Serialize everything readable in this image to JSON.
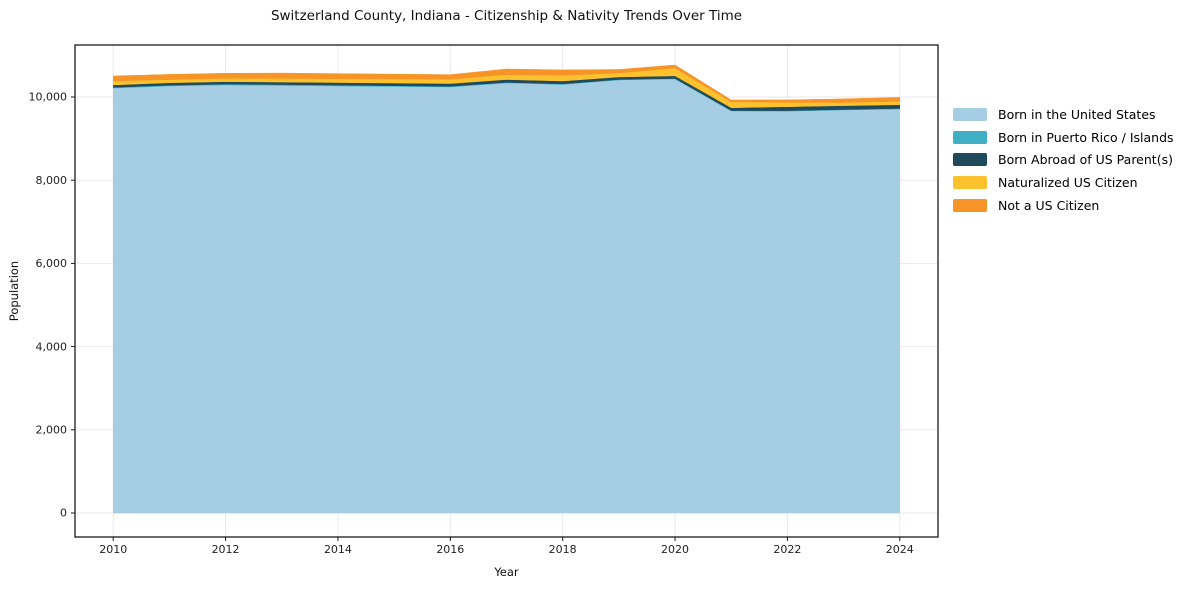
{
  "title": "Switzerland County, Indiana - Citizenship & Nativity Trends Over Time",
  "colors": {
    "background": "#ffffff",
    "frame": "#1a1a1a",
    "grid": "#e9e9e9",
    "tick_text": "#1f1f1f"
  },
  "chart_data": {
    "type": "area",
    "stacked": true,
    "title": "Switzerland County, Indiana - Citizenship & Nativity Trends Over Time",
    "xlabel": "Year",
    "ylabel": "Population",
    "x": [
      2010,
      2011,
      2012,
      2013,
      2014,
      2015,
      2016,
      2017,
      2018,
      2019,
      2020,
      2021,
      2022,
      2023,
      2024
    ],
    "xticks": [
      2010,
      2012,
      2014,
      2016,
      2018,
      2020,
      2022,
      2024
    ],
    "yticks": [
      0,
      2000,
      4000,
      6000,
      8000,
      10000
    ],
    "xlim": [
      2009.32,
      2024.68
    ],
    "ylim": [
      -577,
      11250
    ],
    "grid": true,
    "legend_position": "right-outside",
    "series": [
      {
        "name": "Born in the United States",
        "color": "#a5cde3",
        "values": [
          10215,
          10265,
          10290,
          10277,
          10265,
          10253,
          10241,
          10337,
          10301,
          10410,
          10434,
          9664,
          9660,
          9688,
          9712
        ]
      },
      {
        "name": "Born in Puerto Rico / Islands",
        "color": "#3fafc4",
        "values": [
          16,
          18,
          20,
          22,
          20,
          18,
          16,
          15,
          14,
          12,
          10,
          10,
          12,
          12,
          12
        ]
      },
      {
        "name": "Born Abroad of US Parent(s)",
        "color": "#1f4a5c",
        "values": [
          58,
          60,
          58,
          60,
          62,
          64,
          66,
          68,
          70,
          60,
          65,
          68,
          95,
          92,
          90
        ]
      },
      {
        "name": "Naturalized US Citizen",
        "color": "#fcc22e",
        "values": [
          96,
          75,
          80,
          88,
          92,
          98,
          104,
          118,
          138,
          95,
          185,
          142,
          105,
          75,
          82
        ]
      },
      {
        "name": "Not a US Citizen",
        "color": "#f79428",
        "values": [
          121,
          125,
          122,
          128,
          122,
          116,
          110,
          135,
          128,
          85,
          75,
          45,
          58,
          88,
          96
        ]
      }
    ]
  }
}
